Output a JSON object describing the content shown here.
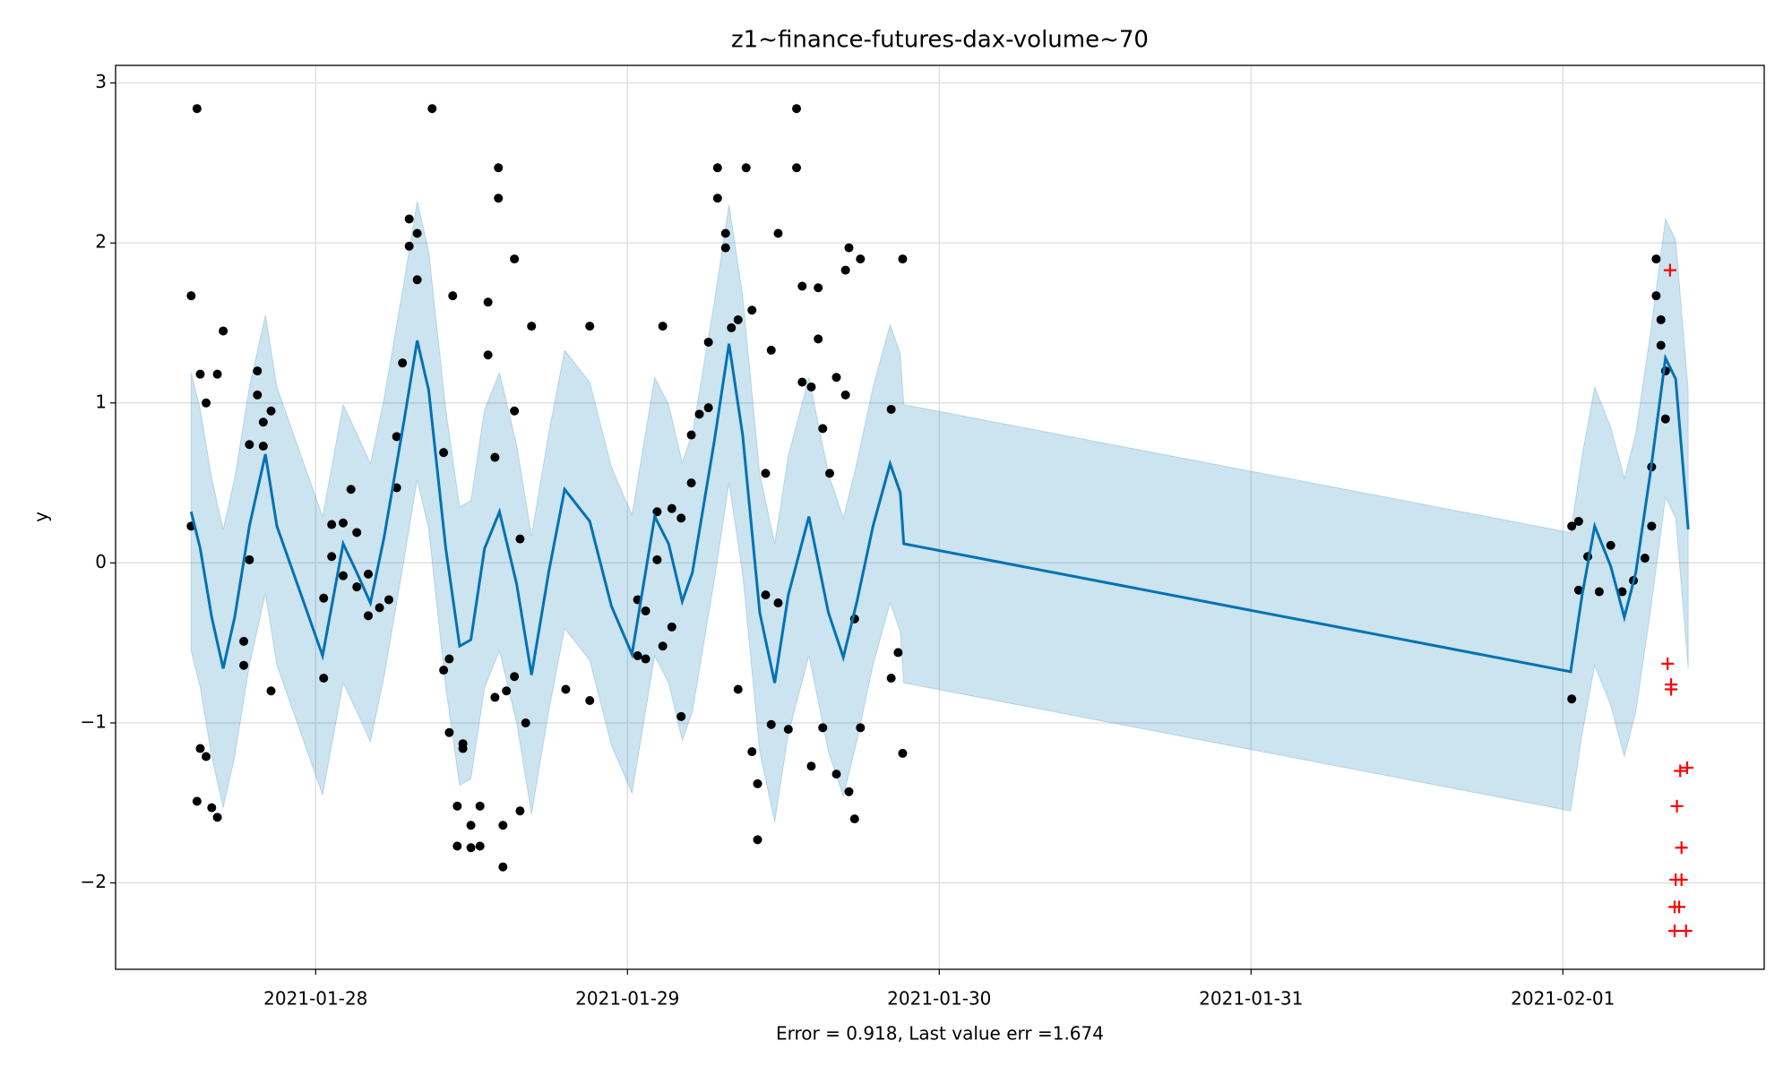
{
  "chart_data": {
    "type": "forecast",
    "title": "z1~finance-futures-dax-volume~70",
    "xlabel": "Error = 0.918, Last value err =1.674",
    "ylabel": "y",
    "grid": true,
    "xlim": [
      "2021-01-27T08:36",
      "2021-02-01T15:30"
    ],
    "xticks": [
      "2021-01-28",
      "2021-01-29",
      "2021-01-30",
      "2021-01-31",
      "2021-02-01"
    ],
    "ylim": [
      -2.54,
      3.11
    ],
    "yticks": [
      {
        "value": -2,
        "label": "−2"
      },
      {
        "value": -1,
        "label": "−1"
      },
      0,
      1,
      2,
      3
    ],
    "x": [
      "2021-01-27T14:25",
      "2021-01-27T15:07",
      "2021-01-27T16:00",
      "2021-01-27T16:53",
      "2021-01-27T17:46",
      "2021-01-27T18:54",
      "2021-01-27T20:08",
      "2021-01-27T21:01",
      "2021-01-28T00:32",
      "2021-01-28T02:07",
      "2021-01-28T03:10",
      "2021-01-28T04:13",
      "2021-01-28T05:16",
      "2021-01-28T06:46",
      "2021-01-28T07:49",
      "2021-01-28T08:42",
      "2021-01-28T10:01",
      "2021-01-28T11:05",
      "2021-01-28T11:57",
      "2021-01-28T13:00",
      "2021-01-28T14:09",
      "2021-01-28T15:28",
      "2021-01-28T16:37",
      "2021-01-28T17:56",
      "2021-01-28T19:10",
      "2021-01-28T21:06",
      "2021-01-28T22:46",
      "2021-01-29T00:21",
      "2021-01-29T02:06",
      "2021-01-29T03:10",
      "2021-01-29T04:13",
      "2021-01-29T05:00",
      "2021-01-29T06:41",
      "2021-01-29T07:49",
      "2021-01-29T08:52",
      "2021-01-29T10:11",
      "2021-01-29T11:20",
      "2021-01-29T12:23",
      "2021-01-29T13:58",
      "2021-01-29T15:28",
      "2021-01-29T16:37",
      "2021-01-29T17:40",
      "2021-01-29T18:54",
      "2021-01-29T20:13",
      "2021-01-29T21:00",
      "2021-01-29T21:16",
      "2021-02-01T00:36",
      "2021-02-01T01:29",
      "2021-02-01T02:27",
      "2021-02-01T03:41",
      "2021-02-01T04:44",
      "2021-02-01T05:37",
      "2021-02-01T06:46",
      "2021-02-01T07:54",
      "2021-02-01T08:41",
      "2021-02-01T09:39"
    ],
    "series": [
      {
        "color": "#0072b2",
        "values": [
          0.32,
          0.09,
          -0.34,
          -0.66,
          -0.34,
          0.23,
          0.68,
          0.23,
          -0.58,
          0.12,
          -0.06,
          -0.25,
          0.16,
          0.87,
          1.39,
          1.08,
          0.09,
          -0.52,
          -0.48,
          0.09,
          0.32,
          -0.13,
          -0.7,
          -0.06,
          0.46,
          0.26,
          -0.27,
          -0.57,
          0.29,
          0.12,
          -0.24,
          -0.06,
          0.76,
          1.37,
          0.8,
          -0.31,
          -0.75,
          -0.2,
          0.29,
          -0.31,
          -0.59,
          -0.24,
          0.23,
          0.62,
          0.44,
          0.12,
          -0.68,
          -0.2,
          0.23,
          -0.02,
          -0.34,
          -0.06,
          0.58,
          1.28,
          1.15,
          0.21
        ],
        "band_color": "#0072b2",
        "upper": [
          1.19,
          0.96,
          0.53,
          0.21,
          0.53,
          1.1,
          1.55,
          1.1,
          0.29,
          0.99,
          0.81,
          0.62,
          1.03,
          1.74,
          2.26,
          1.95,
          0.96,
          0.35,
          0.39,
          0.96,
          1.19,
          0.74,
          0.17,
          0.81,
          1.33,
          1.13,
          0.6,
          0.3,
          1.16,
          0.99,
          0.63,
          0.81,
          1.63,
          2.24,
          1.67,
          0.56,
          0.12,
          0.67,
          1.16,
          0.56,
          0.28,
          0.63,
          1.1,
          1.49,
          1.31,
          0.99,
          0.19,
          0.67,
          1.1,
          0.85,
          0.53,
          0.81,
          1.45,
          2.15,
          2.02,
          1.08
        ],
        "lower": [
          -0.55,
          -0.78,
          -1.21,
          -1.53,
          -1.21,
          -0.64,
          -0.19,
          -0.64,
          -1.45,
          -0.75,
          -0.93,
          -1.12,
          -0.71,
          0.0,
          0.52,
          0.21,
          -0.78,
          -1.39,
          -1.35,
          -0.78,
          -0.55,
          -1.0,
          -1.57,
          -0.93,
          -0.41,
          -0.61,
          -1.14,
          -1.44,
          -0.58,
          -0.75,
          -1.11,
          -0.93,
          -0.11,
          0.5,
          -0.07,
          -1.18,
          -1.62,
          -1.07,
          -0.58,
          -1.18,
          -1.46,
          -1.11,
          -0.64,
          -0.25,
          -0.43,
          -0.75,
          -1.55,
          -1.07,
          -0.64,
          -0.89,
          -1.21,
          -0.93,
          -0.29,
          0.41,
          0.28,
          -0.66
        ]
      }
    ],
    "points": [
      {
        "marker": "dot",
        "color": "#000000",
        "x": [
          "2021-01-27T14:25",
          "2021-01-27T14:25",
          "2021-01-27T14:52",
          "2021-01-27T14:52",
          "2021-01-27T15:07",
          "2021-01-27T15:07",
          "2021-01-27T15:34",
          "2021-01-27T15:34",
          "2021-01-27T16:00",
          "2021-01-27T16:26",
          "2021-01-27T16:26",
          "2021-01-27T16:53",
          "2021-01-27T18:28",
          "2021-01-27T18:28",
          "2021-01-27T18:54",
          "2021-01-27T18:54",
          "2021-01-27T19:31",
          "2021-01-27T19:31",
          "2021-01-27T19:58",
          "2021-01-27T19:58",
          "2021-01-27T20:34",
          "2021-01-27T20:34",
          "2021-01-28T00:37",
          "2021-01-28T00:37",
          "2021-01-28T01:14",
          "2021-01-28T01:14",
          "2021-01-28T02:07",
          "2021-01-28T02:07",
          "2021-01-28T02:43",
          "2021-01-28T03:10",
          "2021-01-28T03:10",
          "2021-01-28T04:03",
          "2021-01-28T04:03",
          "2021-01-28T04:55",
          "2021-01-28T05:38",
          "2021-01-28T06:14",
          "2021-01-28T06:14",
          "2021-01-28T06:41",
          "2021-01-28T07:12",
          "2021-01-28T07:12",
          "2021-01-28T07:49",
          "2021-01-28T07:49",
          "2021-01-28T08:58",
          "2021-01-28T09:51",
          "2021-01-28T09:51",
          "2021-01-28T10:17",
          "2021-01-28T10:17",
          "2021-01-28T10:33",
          "2021-01-28T10:54",
          "2021-01-28T10:54",
          "2021-01-28T11:20",
          "2021-01-28T11:20",
          "2021-01-28T11:57",
          "2021-01-28T11:57",
          "2021-01-28T12:39",
          "2021-01-28T12:39",
          "2021-01-28T13:16",
          "2021-01-28T13:16",
          "2021-01-28T13:48",
          "2021-01-28T13:48",
          "2021-01-28T14:04",
          "2021-01-28T14:04",
          "2021-01-28T14:25",
          "2021-01-28T14:25",
          "2021-01-28T14:41",
          "2021-01-28T15:18",
          "2021-01-28T15:18",
          "2021-01-28T15:18",
          "2021-01-28T15:44",
          "2021-01-28T15:44",
          "2021-01-28T16:10",
          "2021-01-28T16:37",
          "2021-01-28T19:15",
          "2021-01-28T21:06",
          "2021-01-28T21:06",
          "2021-01-29T00:47",
          "2021-01-29T00:47",
          "2021-01-29T01:24",
          "2021-01-29T01:24",
          "2021-01-29T02:17",
          "2021-01-29T02:17",
          "2021-01-29T02:43",
          "2021-01-29T02:43",
          "2021-01-29T03:25",
          "2021-01-29T03:25",
          "2021-01-29T04:08",
          "2021-01-29T04:08",
          "2021-01-29T04:55",
          "2021-01-29T04:55",
          "2021-01-29T05:32",
          "2021-01-29T06:14",
          "2021-01-29T06:14",
          "2021-01-29T06:56",
          "2021-01-29T06:56",
          "2021-01-29T07:33",
          "2021-01-29T07:33",
          "2021-01-29T08:00",
          "2021-01-29T08:31",
          "2021-01-29T08:31",
          "2021-01-29T09:08",
          "2021-01-29T09:35",
          "2021-01-29T09:35",
          "2021-01-29T10:01",
          "2021-01-29T10:01",
          "2021-01-29T10:38",
          "2021-01-29T10:38",
          "2021-01-29T11:04",
          "2021-01-29T11:04",
          "2021-01-29T11:36",
          "2021-01-29T11:36",
          "2021-01-29T12:23",
          "2021-01-29T13:01",
          "2021-01-29T13:01",
          "2021-01-29T13:27",
          "2021-01-29T13:27",
          "2021-01-29T14:09",
          "2021-01-29T14:09",
          "2021-01-29T14:41",
          "2021-01-29T14:41",
          "2021-01-29T15:02",
          "2021-01-29T15:02",
          "2021-01-29T15:34",
          "2021-01-29T16:05",
          "2021-01-29T16:05",
          "2021-01-29T16:47",
          "2021-01-29T16:47",
          "2021-01-29T17:03",
          "2021-01-29T17:03",
          "2021-01-29T17:29",
          "2021-01-29T17:29",
          "2021-01-29T17:56",
          "2021-01-29T17:56",
          "2021-01-29T20:18",
          "2021-01-29T20:18",
          "2021-01-29T20:50",
          "2021-01-29T21:11",
          "2021-01-29T21:11",
          "2021-02-01T00:41",
          "2021-02-01T00:41",
          "2021-02-01T01:13",
          "2021-02-01T01:13",
          "2021-02-01T01:55",
          "2021-02-01T02:48",
          "2021-02-01T03:41",
          "2021-02-01T04:34",
          "2021-02-01T05:26",
          "2021-02-01T06:19",
          "2021-02-01T06:50",
          "2021-02-01T06:50",
          "2021-02-01T07:11",
          "2021-02-01T07:11",
          "2021-02-01T07:33",
          "2021-02-01T07:33",
          "2021-02-01T07:54",
          "2021-02-01T07:54"
        ],
        "values": [
          1.67,
          0.23,
          2.84,
          -1.49,
          1.18,
          -1.16,
          1.0,
          -1.21,
          -1.53,
          1.18,
          -1.59,
          1.45,
          -0.49,
          -0.64,
          0.02,
          0.74,
          1.05,
          1.2,
          0.88,
          0.73,
          0.95,
          -0.8,
          -0.22,
          -0.72,
          0.24,
          0.04,
          -0.08,
          0.25,
          0.46,
          -0.15,
          0.19,
          -0.33,
          -0.07,
          -0.28,
          -0.23,
          0.47,
          0.79,
          1.25,
          1.98,
          2.15,
          1.77,
          2.06,
          2.84,
          0.69,
          -0.67,
          -1.06,
          -0.6,
          1.67,
          -1.52,
          -1.77,
          -1.16,
          -1.13,
          -1.78,
          -1.64,
          -1.77,
          -1.52,
          1.63,
          1.3,
          0.66,
          -0.84,
          2.47,
          2.28,
          -1.64,
          -1.9,
          -0.8,
          0.95,
          1.9,
          -0.71,
          -1.55,
          0.15,
          -1.0,
          1.48,
          -0.79,
          1.48,
          -0.86,
          -0.58,
          -0.23,
          -0.6,
          -0.3,
          0.32,
          0.02,
          1.48,
          -0.52,
          -0.4,
          0.34,
          0.28,
          -0.96,
          0.8,
          0.5,
          0.93,
          1.38,
          0.97,
          2.47,
          2.28,
          2.06,
          1.97,
          1.47,
          1.52,
          -0.79,
          2.47,
          1.58,
          -1.18,
          -1.73,
          -1.38,
          0.56,
          -0.2,
          1.33,
          -1.01,
          2.06,
          -0.25,
          -1.04,
          2.84,
          2.47,
          1.73,
          1.13,
          1.1,
          -1.27,
          1.72,
          1.4,
          0.84,
          -1.03,
          0.56,
          1.16,
          -1.32,
          1.83,
          1.05,
          1.97,
          -1.43,
          -1.6,
          -0.35,
          1.9,
          -1.03,
          0.96,
          -0.72,
          -0.56,
          1.9,
          -1.19,
          0.23,
          -0.85,
          -0.17,
          0.26,
          0.04,
          -0.18,
          0.11,
          -0.18,
          -0.11,
          0.03,
          0.6,
          0.23,
          1.9,
          1.67,
          1.52,
          1.36,
          1.2,
          0.9
        ]
      },
      {
        "marker": "plus",
        "color": "#ff0000",
        "x": [
          "2021-02-01T08:15",
          "2021-02-01T08:04",
          "2021-02-01T08:20",
          "2021-02-01T08:20",
          "2021-02-01T09:02",
          "2021-02-01T09:34",
          "2021-02-01T08:47",
          "2021-02-01T09:08",
          "2021-02-01T08:41",
          "2021-02-01T09:08",
          "2021-02-01T08:36",
          "2021-02-01T08:57",
          "2021-02-01T08:36",
          "2021-02-01T09:29"
        ],
        "values": [
          1.83,
          -0.63,
          -0.76,
          -0.79,
          -1.3,
          -1.28,
          -1.52,
          -1.78,
          -1.98,
          -1.98,
          -2.15,
          -2.15,
          -2.3,
          -2.3
        ]
      }
    ]
  }
}
